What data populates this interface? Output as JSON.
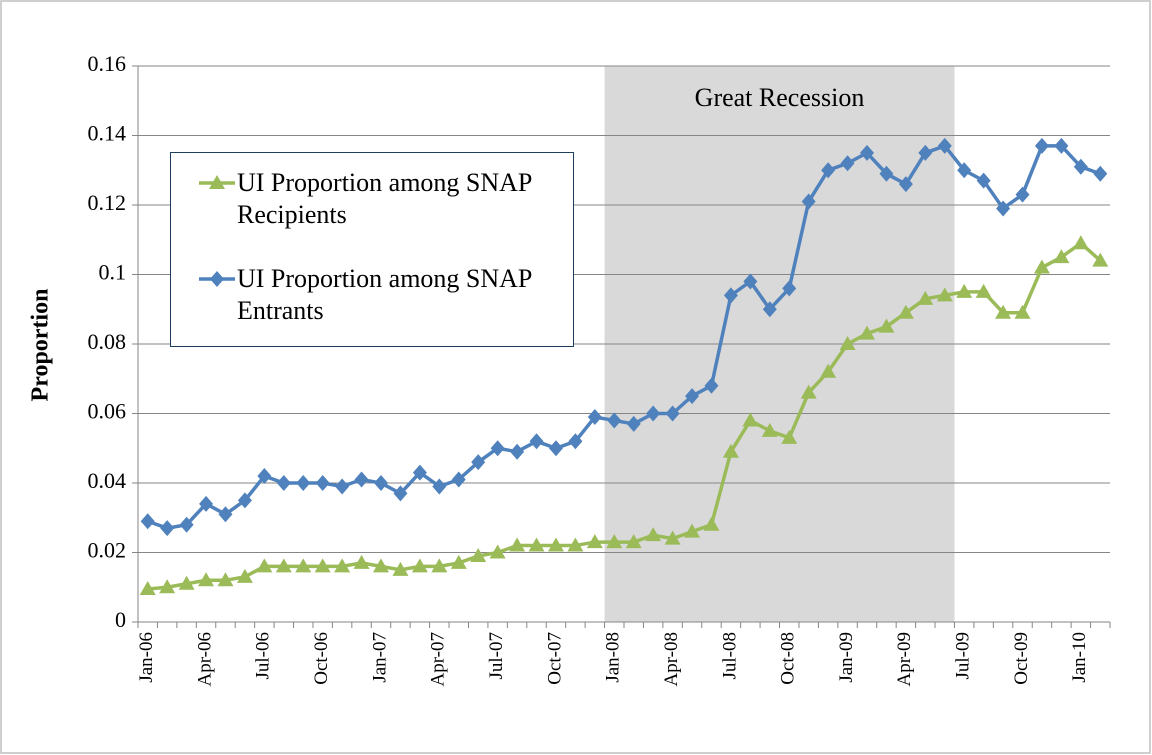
{
  "chart_data": {
    "type": "line",
    "ylabel": "Proportion",
    "annotation": "Great Recession",
    "categories": [
      "Jan-06",
      null,
      null,
      "Apr-06",
      null,
      null,
      "Jul-06",
      null,
      null,
      "Oct-06",
      null,
      null,
      "Jan-07",
      null,
      null,
      "Apr-07",
      null,
      null,
      "Jul-07",
      null,
      null,
      "Oct-07",
      null,
      null,
      "Jan-08",
      null,
      null,
      "Apr-08",
      null,
      null,
      "Jul-08",
      null,
      null,
      "Oct-08",
      null,
      null,
      "Jan-09",
      null,
      null,
      "Apr-09",
      null,
      null,
      "Jul-09",
      null,
      null,
      "Oct-09",
      null,
      null,
      "Jan-10",
      null
    ],
    "series": [
      {
        "name": "UI Proportion among SNAP Recipients",
        "color": "#9bbb59",
        "marker": "triangle",
        "values": [
          0.0095,
          0.01,
          0.011,
          0.012,
          0.012,
          0.013,
          0.016,
          0.016,
          0.016,
          0.016,
          0.016,
          0.017,
          0.016,
          0.015,
          0.016,
          0.016,
          0.017,
          0.019,
          0.02,
          0.022,
          0.022,
          0.022,
          0.022,
          0.023,
          0.023,
          0.023,
          0.025,
          0.024,
          0.026,
          0.028,
          0.049,
          0.058,
          0.055,
          0.053,
          0.066,
          0.072,
          0.08,
          0.083,
          0.085,
          0.089,
          0.093,
          0.094,
          0.095,
          0.095,
          0.089,
          0.089,
          0.102,
          0.105,
          0.109,
          0.104
        ]
      },
      {
        "name": "UI Proportion among SNAP Entrants",
        "color": "#4f81bd",
        "marker": "diamond",
        "values": [
          0.029,
          0.027,
          0.028,
          0.034,
          0.031,
          0.035,
          0.042,
          0.04,
          0.04,
          0.04,
          0.039,
          0.041,
          0.04,
          0.037,
          0.043,
          0.039,
          0.041,
          0.046,
          0.05,
          0.049,
          0.052,
          0.05,
          0.052,
          0.059,
          0.058,
          0.057,
          0.06,
          0.06,
          0.065,
          0.068,
          0.094,
          0.098,
          0.09,
          0.096,
          0.121,
          0.13,
          0.132,
          0.135,
          0.129,
          0.126,
          0.135,
          0.137,
          0.13,
          0.127,
          0.119,
          0.123,
          0.137,
          0.137,
          0.131,
          0.129
        ]
      }
    ],
    "ylim": [
      0,
      0.16
    ],
    "yticks": [
      0,
      0.02,
      0.04,
      0.06,
      0.08,
      0.1,
      0.12,
      0.14,
      0.16
    ],
    "grid": true
  }
}
